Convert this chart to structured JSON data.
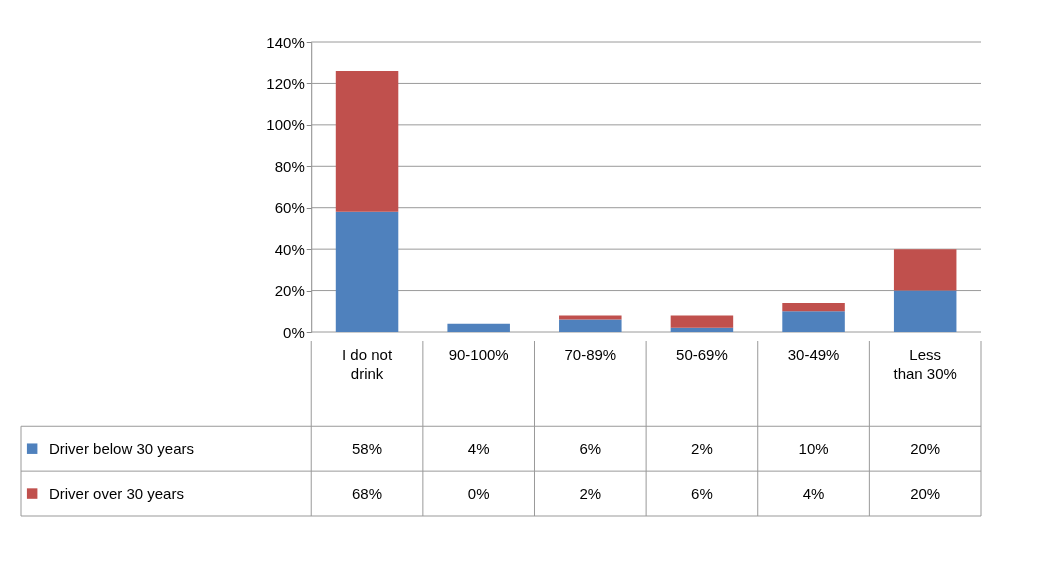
{
  "chart_data": {
    "type": "bar",
    "stacked": true,
    "categories": [
      "I do not drink",
      "90-100%",
      "70-89%",
      "50-69%",
      "30-49%",
      "Less than 30%"
    ],
    "series": [
      {
        "name": "Driver below 30 years",
        "color": "#4f81bd",
        "values": [
          58,
          4,
          6,
          2,
          10,
          20
        ],
        "value_labels": [
          "58%",
          "4%",
          "6%",
          "2%",
          "10%",
          "20%"
        ]
      },
      {
        "name": "Driver over 30 years",
        "color": "#c0504d",
        "values": [
          68,
          0,
          2,
          6,
          4,
          20
        ],
        "value_labels": [
          "68%",
          "0%",
          "2%",
          "6%",
          "4%",
          "20%"
        ]
      }
    ],
    "ylim": [
      0,
      140
    ],
    "yticks": [
      {
        "value": 0,
        "label": "0%"
      },
      {
        "value": 20,
        "label": "20%"
      },
      {
        "value": 40,
        "label": "40%"
      },
      {
        "value": 60,
        "label": "60%"
      },
      {
        "value": 80,
        "label": "80%"
      },
      {
        "value": 100,
        "label": "100%"
      },
      {
        "value": 120,
        "label": "120%"
      },
      {
        "value": 140,
        "label": "140%"
      }
    ],
    "grid": "y",
    "legend": "bottom"
  }
}
